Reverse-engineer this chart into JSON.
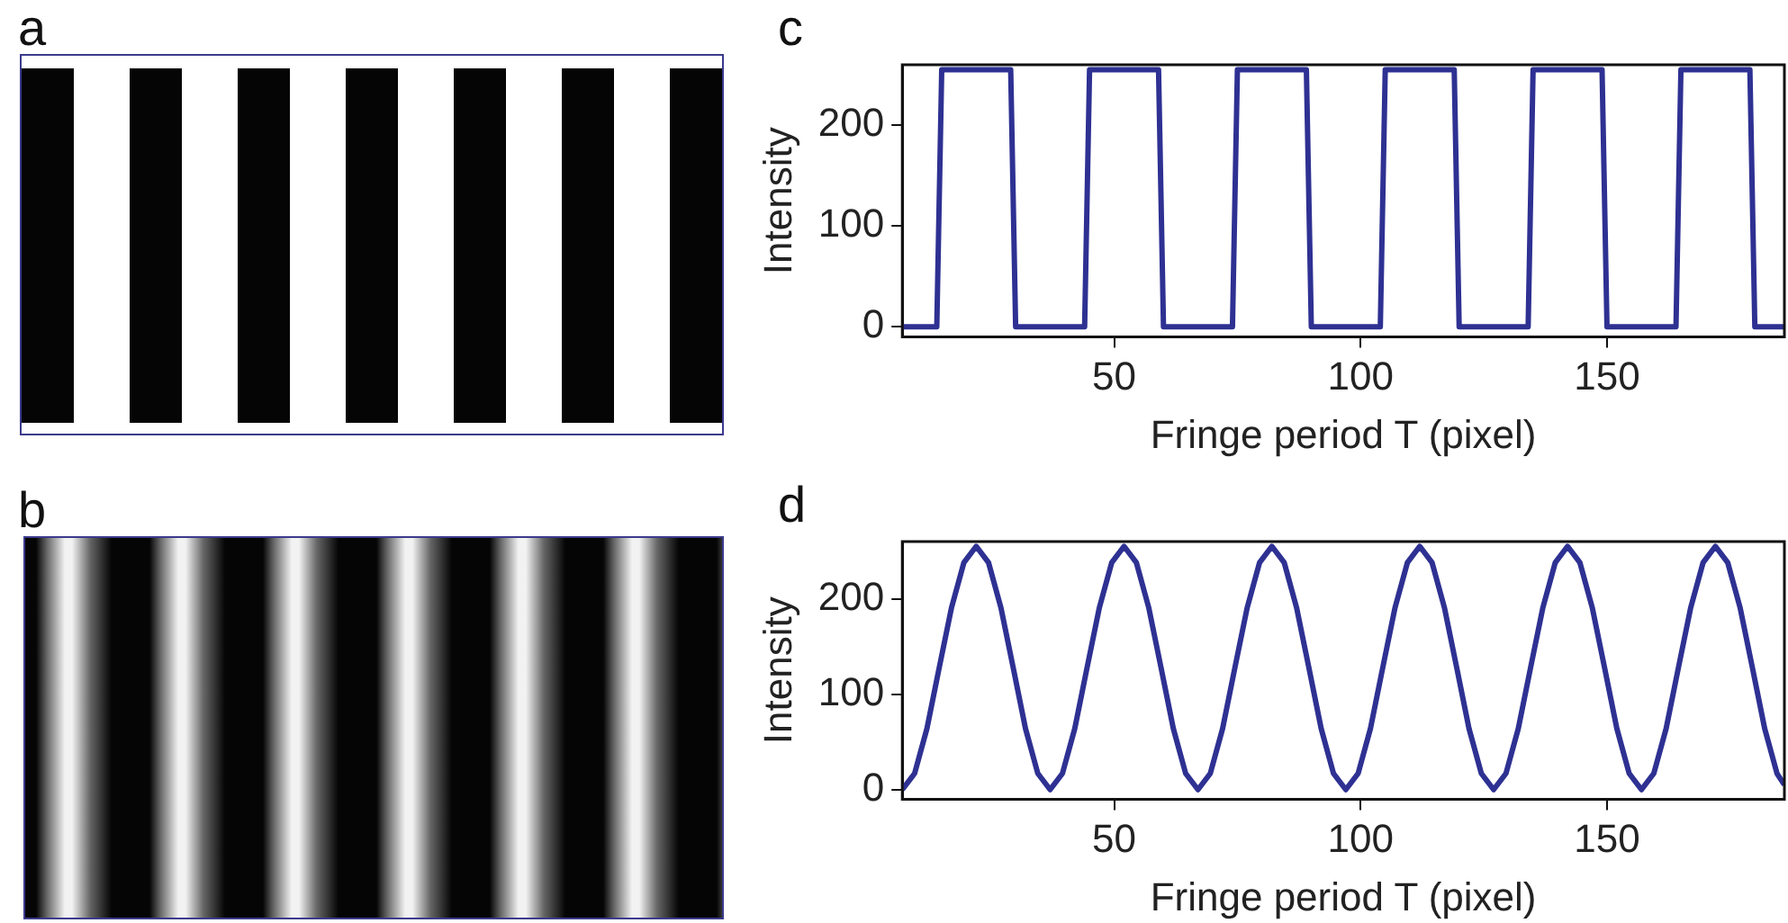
{
  "chart_data": [
    {
      "type": "other",
      "title": "a"
    },
    {
      "type": "other",
      "title": "b"
    },
    {
      "type": "line",
      "title": "c",
      "xlabel": "Fringe period T (pixel)",
      "ylabel": "Intensity",
      "xlim": [
        7,
        186
      ],
      "xticks": [
        50,
        100,
        150
      ],
      "ylim": [
        -10,
        260
      ],
      "yticks": [
        0,
        100,
        200
      ],
      "grid": false,
      "legend": false,
      "marker": "none",
      "line_style": "solid",
      "series": [
        {
          "color": "#2e3192",
          "x": [
            7,
            14,
            15,
            29,
            30,
            44,
            45,
            59,
            60,
            74,
            75,
            89,
            90,
            104,
            105,
            119,
            120,
            134,
            135,
            149,
            150,
            164,
            165,
            179,
            180,
            186
          ],
          "values": [
            0,
            0,
            255,
            255,
            0,
            0,
            255,
            255,
            0,
            0,
            255,
            255,
            0,
            0,
            255,
            255,
            0,
            0,
            255,
            255,
            0,
            0,
            255,
            255,
            0,
            0
          ]
        }
      ]
    },
    {
      "type": "line",
      "title": "d",
      "xlabel": "Fringe period T (pixel)",
      "ylabel": "Intensity",
      "xlim": [
        7,
        186
      ],
      "xticks": [
        50,
        100,
        150
      ],
      "ylim": [
        -10,
        260
      ],
      "yticks": [
        0,
        100,
        200
      ],
      "grid": false,
      "legend": false,
      "marker": "none",
      "line_style": "solid",
      "series": [
        {
          "color": "#2e3192",
          "x": [
            7,
            9.5,
            12,
            14.5,
            17,
            19.5,
            22,
            24.5,
            27,
            29.5,
            32,
            34.5,
            37,
            39.5,
            42,
            44.5,
            47,
            49.5,
            52,
            54.5,
            57,
            59.5,
            62,
            64.5,
            67,
            69.5,
            72,
            74.5,
            77,
            79.5,
            82,
            84.5,
            87,
            89.5,
            92,
            94.5,
            97,
            99.5,
            102,
            104.5,
            107,
            109.5,
            112,
            114.5,
            117,
            119.5,
            122,
            124.5,
            127,
            129.5,
            132,
            134.5,
            137,
            139.5,
            142,
            144.5,
            147,
            149.5,
            152,
            154.5,
            157,
            159.5,
            162,
            164.5,
            167,
            169.5,
            172,
            174.5,
            177,
            179.5,
            182,
            184.5,
            186
          ],
          "values": [
            0,
            17,
            64,
            128,
            191,
            238,
            255,
            238,
            191,
            128,
            64,
            17,
            0,
            17,
            64,
            128,
            191,
            238,
            255,
            238,
            191,
            128,
            64,
            17,
            0,
            17,
            64,
            128,
            191,
            238,
            255,
            238,
            191,
            128,
            64,
            17,
            0,
            17,
            64,
            128,
            191,
            238,
            255,
            238,
            191,
            128,
            64,
            17,
            0,
            17,
            64,
            128,
            191,
            238,
            255,
            238,
            191,
            128,
            64,
            17,
            0,
            17,
            64,
            128,
            191,
            238,
            255,
            238,
            191,
            128,
            64,
            17,
            5
          ]
        }
      ]
    }
  ]
}
